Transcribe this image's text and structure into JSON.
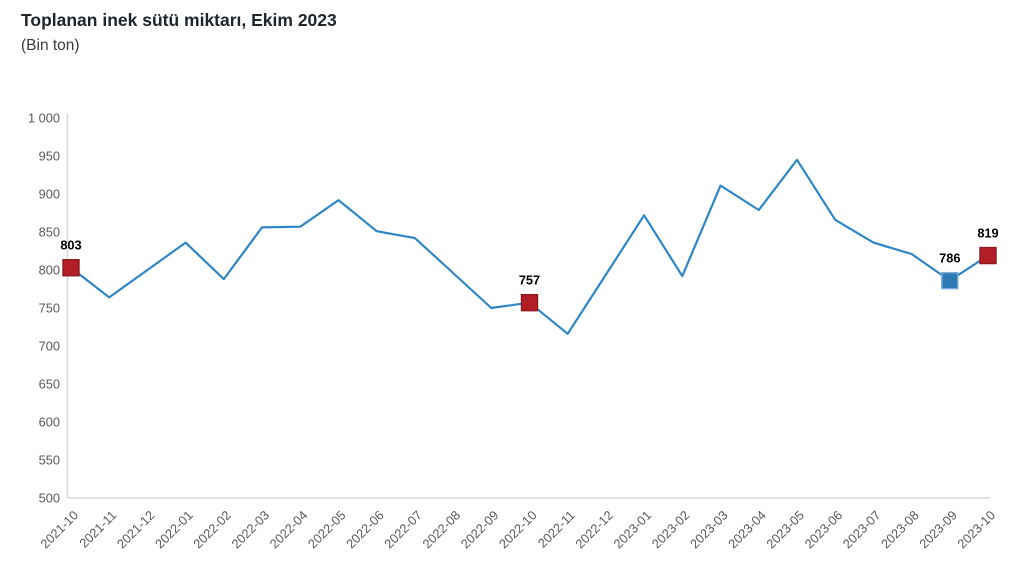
{
  "header": {
    "title": "Toplanan inek sütü miktarı, Ekim 2023",
    "subtitle": "(Bin ton)"
  },
  "chart_data": {
    "type": "line",
    "title": "Toplanan inek sütü miktarı, Ekim 2023",
    "subtitle": "(Bin ton)",
    "unit": "Bin ton",
    "categories": [
      "2021-10",
      "2021-11",
      "2021-12",
      "2022-01",
      "2022-02",
      "2022-03",
      "2022-04",
      "2022-05",
      "2022-06",
      "2022-07",
      "2022-08",
      "2022-09",
      "2022-10",
      "2022-11",
      "2022-12",
      "2023-01",
      "2023-02",
      "2023-03",
      "2023-04",
      "2023-05",
      "2023-06",
      "2023-07",
      "2023-08",
      "2023-09",
      "2023-10"
    ],
    "series": [
      {
        "name": "Toplanan inek sütü miktarı",
        "color": "#2F86C4",
        "values": [
          803,
          764,
          800,
          836,
          788,
          856,
          857,
          892,
          851,
          842,
          796,
          750,
          757,
          716,
          794,
          872,
          792,
          911,
          879,
          945,
          866,
          836,
          821,
          786,
          819
        ]
      }
    ],
    "ylim": [
      500,
      1000
    ],
    "ytick_step": 50,
    "ytick_labels": [
      "500",
      "550",
      "600",
      "650",
      "700",
      "750",
      "800",
      "850",
      "900",
      "950",
      "1 000"
    ],
    "grid": false,
    "legend": "none",
    "axis_color": "#D9D9D9",
    "tick_label_color": "#595959",
    "x_labels_rotation_deg": -45,
    "annotated_points": [
      {
        "category": "2021-10",
        "index": 0,
        "value": 803,
        "label": "803",
        "marker": "square",
        "marker_color": "#B11E25",
        "marker_stroke": "#8F181D"
      },
      {
        "category": "2022-10",
        "index": 12,
        "value": 757,
        "label": "757",
        "marker": "square",
        "marker_color": "#B11E25",
        "marker_stroke": "#8F181D"
      },
      {
        "category": "2023-09",
        "index": 23,
        "value": 786,
        "label": "786",
        "marker": "square",
        "marker_color": "#2F79B5",
        "marker_stroke": "#7AADDA"
      },
      {
        "category": "2023-10",
        "index": 24,
        "value": 819,
        "label": "819",
        "marker": "square",
        "marker_color": "#B11E25",
        "marker_stroke": "#8F181D"
      }
    ],
    "annotation_label_color": "#000000"
  }
}
